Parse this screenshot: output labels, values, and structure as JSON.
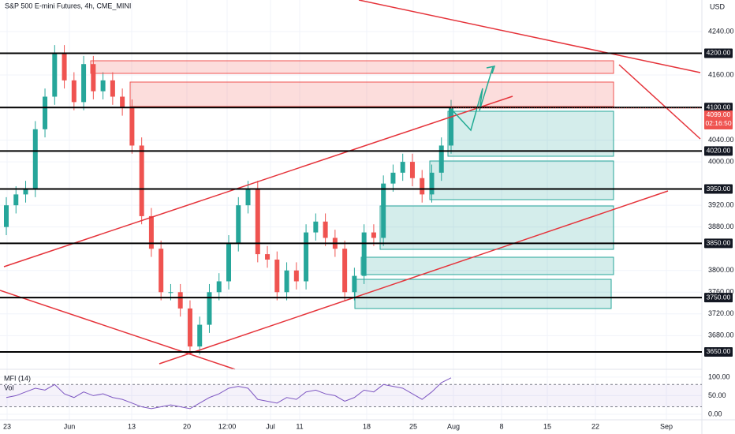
{
  "chart_data": {
    "type": "candlestick",
    "title": "S&P 500 E-mini Futures, 4h, CME_MINI",
    "currency": "USD",
    "open": [
      3880,
      3920,
      3940,
      3950,
      4060,
      4120,
      4200,
      4150,
      4110,
      4180,
      4130,
      4150,
      4120,
      4100,
      4030,
      3900,
      3840,
      3760,
      3760,
      3730,
      3660,
      3700,
      3760,
      3780,
      3850,
      3920,
      3950,
      3830,
      3820,
      3760,
      3800,
      3780,
      3870,
      3890,
      3860,
      3840,
      3760,
      3790,
      3870,
      3860,
      3960,
      3980,
      4000,
      3970,
      3940,
      3980,
      4030
    ],
    "high": [
      3935,
      3955,
      3965,
      4075,
      4135,
      4215,
      4215,
      4165,
      4195,
      4195,
      4165,
      4165,
      4135,
      4115,
      4045,
      3915,
      3855,
      3775,
      3775,
      3745,
      3715,
      3775,
      3795,
      3865,
      3935,
      3965,
      3965,
      3845,
      3835,
      3815,
      3815,
      3885,
      3905,
      3905,
      3875,
      3855,
      3805,
      3885,
      3885,
      3975,
      3995,
      4015,
      4015,
      3985,
      3995,
      4045,
      4114
    ],
    "low": [
      3865,
      3905,
      3925,
      3935,
      4045,
      4105,
      4135,
      4095,
      4095,
      4115,
      4115,
      4105,
      4085,
      4015,
      3885,
      3825,
      3745,
      3745,
      3715,
      3645,
      3645,
      3685,
      3745,
      3765,
      3835,
      3905,
      3815,
      3805,
      3745,
      3745,
      3765,
      3765,
      3855,
      3845,
      3825,
      3745,
      3745,
      3775,
      3845,
      3845,
      3945,
      3965,
      3955,
      3925,
      3925,
      3965,
      4015
    ],
    "close": [
      3920,
      3940,
      3950,
      4060,
      4120,
      4200,
      4150,
      4110,
      4180,
      4130,
      4150,
      4120,
      4100,
      4030,
      3900,
      3840,
      3760,
      3760,
      3730,
      3660,
      3700,
      3760,
      3780,
      3850,
      3920,
      3950,
      3830,
      3820,
      3760,
      3800,
      3780,
      3870,
      3890,
      3860,
      3840,
      3760,
      3790,
      3870,
      3860,
      3960,
      3980,
      4000,
      3970,
      3940,
      3980,
      4030,
      4099
    ],
    "up_color": "#26a69a",
    "down_color": "#ef5350",
    "ylim": [
      3618,
      4298
    ],
    "yticks": [
      {
        "value": 4240,
        "label": "4240.00"
      },
      {
        "value": 4160,
        "label": "4160.00"
      },
      {
        "value": 4040,
        "label": "4040.00"
      },
      {
        "value": 4000,
        "label": "4000.00"
      },
      {
        "value": 3920,
        "label": "3920.00"
      },
      {
        "value": 3880,
        "label": "3880.00"
      },
      {
        "value": 3800,
        "label": "3800.00"
      },
      {
        "value": 3760,
        "label": "3760.00"
      },
      {
        "value": 3720,
        "label": "3720.00"
      },
      {
        "value": 3680,
        "label": "3680.00"
      }
    ],
    "levels": [
      {
        "value": 4200,
        "label": "4200.00"
      },
      {
        "value": 4100,
        "label": "4100.00"
      },
      {
        "value": 4020,
        "label": "4020.00"
      },
      {
        "value": 3950,
        "label": "3950.00"
      },
      {
        "value": 3850,
        "label": "3850.00"
      },
      {
        "value": 3750,
        "label": "3750.00"
      },
      {
        "value": 3650,
        "label": "3650.00"
      }
    ],
    "last_price": {
      "value": 4099,
      "label": "4099.00"
    },
    "countdown": "02:16:50",
    "xtick_labels": [
      "23",
      "Jun",
      "13",
      "20",
      "12:00",
      "Jul",
      "11",
      "18",
      "25",
      "Aug",
      "8",
      "15",
      "22",
      "Sep"
    ],
    "indicator": {
      "name": "MFI (14)",
      "volume_label": "Vol",
      "color": "#7e57c2",
      "values": [
        45,
        50,
        60,
        70,
        65,
        80,
        55,
        45,
        60,
        50,
        55,
        45,
        40,
        30,
        20,
        15,
        20,
        25,
        20,
        15,
        30,
        45,
        55,
        70,
        75,
        70,
        40,
        35,
        30,
        45,
        40,
        60,
        65,
        55,
        50,
        35,
        45,
        65,
        60,
        80,
        75,
        70,
        55,
        40,
        60,
        85,
        98
      ],
      "ylim": [
        -15,
        121
      ],
      "yticks": [
        {
          "value": 100,
          "label": "100.00"
        },
        {
          "value": 50,
          "label": "50.00"
        },
        {
          "value": 0,
          "label": "0.00"
        }
      ],
      "bands": [
        20,
        80
      ]
    }
  }
}
